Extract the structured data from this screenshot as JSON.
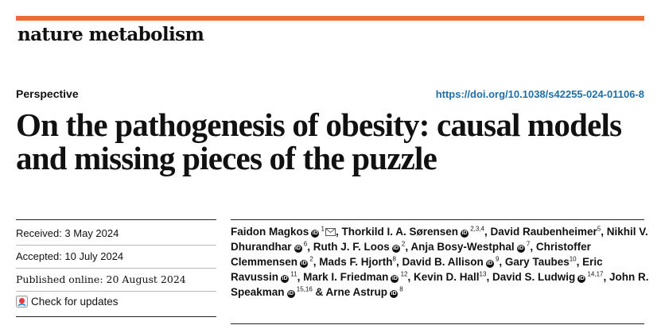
{
  "journal": "nature metabolism",
  "accent_color": "#ed6b37",
  "link_color": "#1e6fa8",
  "article_type": "Perspective",
  "doi": "https://doi.org/10.1038/s42255-024-01106-8",
  "title": "On the pathogenesis of obesity: causal models and missing pieces of the puzzle",
  "dates": {
    "received": "Received: 3 May 2024",
    "accepted": "Accepted: 10 July 2024",
    "published": "Published online: 20 August 2024"
  },
  "check_updates": "Check for updates",
  "authors": [
    {
      "name": "Faidon Magkos",
      "aff": "1",
      "corresponding": true
    },
    {
      "name": "Thorkild I. A. Sørensen",
      "aff": "2,3,4"
    },
    {
      "name": "David Raubenheimer",
      "aff": "5",
      "no_orcid": true
    },
    {
      "name": "Nikhil V. Dhurandhar",
      "aff": "6"
    },
    {
      "name": "Ruth J. F. Loos",
      "aff": "2"
    },
    {
      "name": "Anja Bosy-Westphal",
      "aff": "7"
    },
    {
      "name": "Christoffer Clemmensen",
      "aff": "2"
    },
    {
      "name": "Mads F. Hjorth",
      "aff": "8",
      "no_orcid": true
    },
    {
      "name": "David B. Allison",
      "aff": "9"
    },
    {
      "name": "Gary Taubes",
      "aff": "10",
      "no_orcid": true
    },
    {
      "name": "Eric Ravussin",
      "aff": "11"
    },
    {
      "name": "Mark I. Friedman",
      "aff": "12"
    },
    {
      "name": "Kevin D. Hall",
      "aff": "13",
      "no_orcid": true
    },
    {
      "name": "David S. Ludwig",
      "aff": "14,17"
    },
    {
      "name": "John R. Speakman",
      "aff": "15,16"
    },
    {
      "name": "Arne Astrup",
      "aff": "8"
    }
  ],
  "icons": {
    "orcid": "orcid-icon",
    "mail": "envelope-icon",
    "check": "check-updates-icon"
  }
}
